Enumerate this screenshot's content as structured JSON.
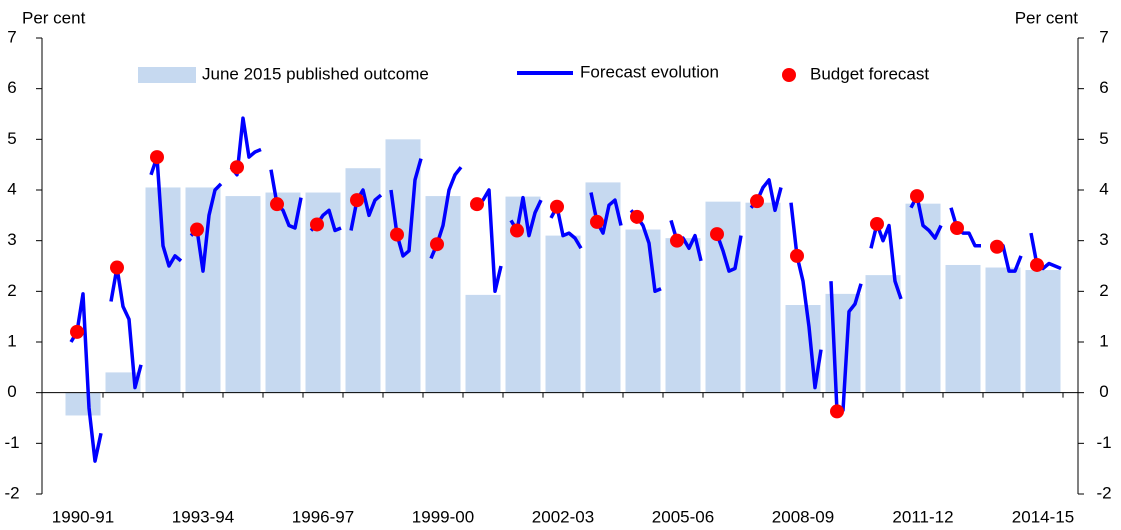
{
  "chart_data": {
    "type": "combo",
    "ylabel": "Per cent",
    "y2label": "Per cent",
    "categories": [
      "1990-91",
      null,
      null,
      "1993-94",
      null,
      null,
      "1996-97",
      null,
      null,
      "1999-00",
      null,
      null,
      "2002-03",
      null,
      null,
      "2005-06",
      null,
      null,
      "2008-09",
      null,
      null,
      "2011-12",
      null,
      null,
      "2014-15"
    ],
    "ylim": [
      -2,
      7
    ],
    "yticks": [
      -2,
      -1,
      0,
      1,
      2,
      3,
      4,
      5,
      6,
      7
    ],
    "y2lim": [
      -2,
      7
    ],
    "y2ticks": [
      -2,
      -1,
      0,
      1,
      2,
      3,
      4,
      5,
      6,
      7
    ],
    "series": [
      {
        "name": "June 2015 published outcome",
        "type": "bar",
        "color": "#c6d9f0",
        "values": [
          -0.45,
          0.4,
          4.05,
          4.05,
          3.88,
          3.95,
          3.95,
          4.43,
          5.0,
          3.88,
          1.93,
          3.87,
          3.1,
          4.15,
          3.22,
          3.05,
          3.77,
          3.75,
          1.73,
          1.95,
          2.32,
          3.73,
          2.52,
          2.47,
          2.42
        ]
      },
      {
        "name": "Forecast evolution",
        "type": "line",
        "color": "#0000ff",
        "values": [
          [
            1.0,
            1.2,
            1.95,
            -0.3,
            -1.35,
            -0.8
          ],
          [
            1.8,
            2.47,
            1.7,
            1.45,
            0.1,
            0.55
          ],
          [
            4.3,
            4.65,
            2.9,
            2.5,
            2.7,
            2.6
          ],
          [
            3.1,
            3.22,
            2.4,
            3.5,
            4.0,
            4.12
          ],
          [
            4.45,
            4.3,
            5.42,
            4.65,
            4.75,
            4.8
          ],
          [
            4.4,
            3.72,
            3.6,
            3.3,
            3.25,
            3.85
          ],
          [
            3.2,
            3.32,
            3.5,
            3.6,
            3.2,
            3.25
          ],
          [
            3.2,
            3.8,
            4.0,
            3.5,
            3.8,
            3.9
          ],
          [
            4.0,
            3.12,
            2.7,
            2.8,
            4.2,
            4.62
          ],
          [
            2.65,
            2.93,
            3.3,
            4.0,
            4.3,
            4.45
          ],
          [
            3.65,
            3.72,
            3.8,
            4.0,
            2.0,
            2.5
          ],
          [
            3.4,
            3.2,
            3.85,
            3.1,
            3.55,
            3.8
          ],
          [
            3.45,
            3.67,
            3.1,
            3.15,
            3.05,
            2.85
          ],
          [
            3.95,
            3.37,
            3.15,
            3.7,
            3.8,
            3.3
          ],
          [
            3.6,
            3.47,
            3.3,
            2.95,
            2.0,
            2.05
          ],
          [
            3.4,
            3.0,
            3.05,
            2.85,
            3.1,
            2.6
          ],
          [
            3.1,
            3.13,
            2.8,
            2.4,
            2.45,
            3.1
          ],
          [
            3.65,
            3.78,
            4.05,
            4.2,
            3.6,
            4.05
          ],
          [
            3.75,
            2.7,
            2.2,
            1.3,
            0.1,
            0.85
          ],
          [
            2.2,
            -0.37,
            -0.35,
            1.6,
            1.75,
            2.15
          ],
          [
            2.85,
            3.33,
            3.0,
            3.3,
            2.2,
            1.85
          ],
          [
            3.65,
            3.88,
            3.3,
            3.2,
            3.05,
            3.3
          ],
          [
            3.65,
            3.25,
            3.15,
            3.15,
            2.9,
            2.9
          ],
          [
            2.95,
            2.88,
            2.9,
            2.4,
            2.4,
            2.7
          ],
          [
            3.15,
            2.52,
            2.45,
            2.55,
            2.5,
            2.45
          ]
        ]
      },
      {
        "name": "Budget forecast",
        "type": "scatter",
        "color": "#ff0000",
        "values": [
          1.2,
          2.47,
          4.65,
          3.22,
          4.45,
          3.72,
          3.32,
          3.8,
          3.12,
          2.93,
          3.72,
          3.2,
          3.67,
          3.37,
          3.47,
          3.0,
          3.13,
          3.78,
          2.7,
          -0.37,
          3.33,
          3.88,
          3.25,
          2.88,
          2.52
        ]
      }
    ]
  }
}
